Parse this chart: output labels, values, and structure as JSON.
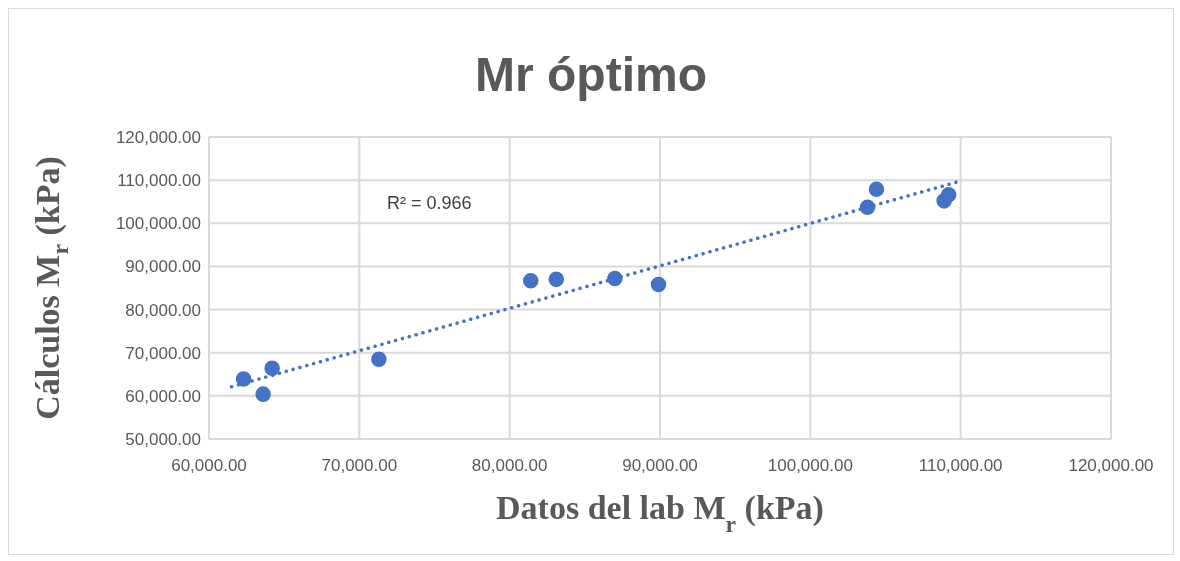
{
  "chart_data": {
    "type": "scatter",
    "title": "Mr óptimo",
    "xlabel": "Datos del lab M$_{r}$ (kPa)",
    "ylabel": "Cálculos M$_{r}$ (kPa)",
    "annotations": [
      "R² = 0.966"
    ],
    "series": [
      {
        "marker": "circle",
        "color": "#4472c4",
        "x": [
          62300,
          64200,
          63600,
          71300,
          81400,
          83100,
          87000,
          89900,
          103800,
          104400,
          108900,
          109200
        ],
        "values": [
          63900,
          66400,
          60400,
          68500,
          86700,
          87000,
          87200,
          85800,
          103700,
          107900,
          105200,
          106600
        ]
      },
      {
        "type": "line",
        "color": "#4472c4",
        "line_style": "dotted",
        "x": [
          61500,
          110000
        ],
        "values": [
          62100,
          109800
        ]
      }
    ],
    "xlim": [
      60000,
      120000
    ],
    "ylim": [
      50000,
      120000
    ],
    "xticks": [
      {
        "value": 60000,
        "label": "60,000.00"
      },
      {
        "value": 70000,
        "label": "70,000.00"
      },
      {
        "value": 80000,
        "label": "80,000.00"
      },
      {
        "value": 90000,
        "label": "90,000.00"
      },
      {
        "value": 100000,
        "label": "100,000.00"
      },
      {
        "value": 110000,
        "label": "110,000.00"
      },
      {
        "value": 120000,
        "label": "120,000.00"
      }
    ],
    "yticks": [
      {
        "value": 50000,
        "label": "50,000.00"
      },
      {
        "value": 60000,
        "label": "60,000.00"
      },
      {
        "value": 70000,
        "label": "70,000.00"
      },
      {
        "value": 80000,
        "label": "80,000.00"
      },
      {
        "value": 90000,
        "label": "90,000.00"
      },
      {
        "value": 100000,
        "label": "100,000.00"
      },
      {
        "value": 110000,
        "label": "110,000.00"
      },
      {
        "value": 120000,
        "label": "120,000.00"
      }
    ],
    "grid": true
  }
}
